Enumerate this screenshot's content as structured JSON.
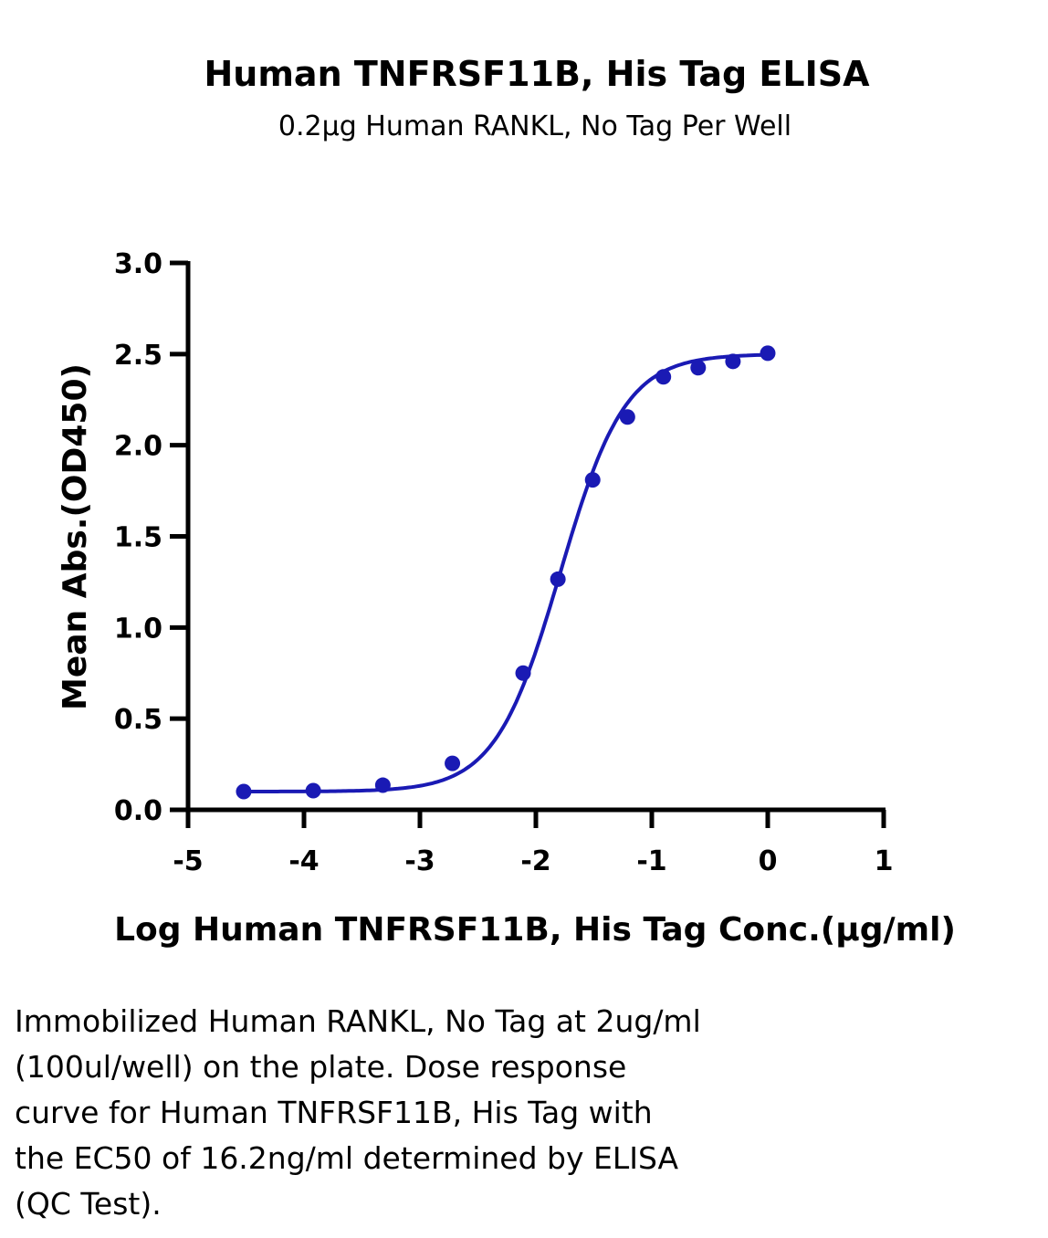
{
  "chart_data": {
    "type": "scatter",
    "title": "Human TNFRSF11B, His Tag ELISA",
    "subtitle": "0.2μg Human RANKL, No Tag Per Well",
    "xlabel": "Log Human TNFRSF11B, His Tag Conc.(μg/ml)",
    "ylabel": "Mean Abs.(OD450)",
    "xlim": [
      -5,
      1
    ],
    "ylim": [
      0,
      3
    ],
    "xticks": [
      "-5",
      "-4",
      "-3",
      "-2",
      "-1",
      "0",
      "1"
    ],
    "yticks": [
      "0.0",
      "0.5",
      "1.0",
      "1.5",
      "2.0",
      "2.5",
      "3.0"
    ],
    "grid": false,
    "series": [
      {
        "color": "#1a1ab4",
        "x": [
          -4.52,
          -3.92,
          -3.32,
          -2.72,
          -2.11,
          -1.81,
          -1.51,
          -1.21,
          -0.9,
          -0.6,
          -0.3,
          0.0
        ],
        "y": [
          0.1,
          0.105,
          0.135,
          0.255,
          0.75,
          1.265,
          1.81,
          2.155,
          2.375,
          2.425,
          2.46,
          2.505
        ],
        "fit": "four-parameter logistic"
      }
    ]
  },
  "caption": "Immobilized Human RANKL, No Tag at 2ug/ml\n(100ul/well) on the plate. Dose response\ncurve for Human TNFRSF11B, His Tag with\nthe EC50 of 16.2ng/ml determined by ELISA\n(QC Test)."
}
